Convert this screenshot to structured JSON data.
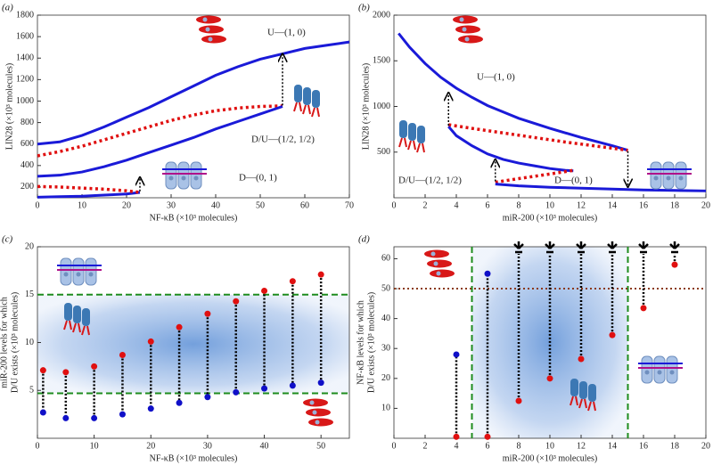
{
  "chart_data": [
    {
      "type": "line",
      "panel": "(a)",
      "x_label": "NF-κB (×10³ molecules)",
      "y_label": [
        "LIN28 (×10³ molecules)"
      ],
      "xlim": [
        0,
        70
      ],
      "xticks": [
        0,
        10,
        20,
        30,
        40,
        50,
        60,
        70
      ],
      "ylim": [
        100,
        1800
      ],
      "yticks": [
        200,
        400,
        600,
        800,
        1000,
        1200,
        1400,
        1600,
        1800
      ],
      "series": [
        {
          "color": "#1a1ad8",
          "style": "solid",
          "x": [
            0,
            5,
            10,
            15,
            20,
            25,
            30,
            35,
            40,
            45,
            50,
            55,
            60,
            65,
            70
          ],
          "values": [
            600,
            620,
            680,
            760,
            850,
            940,
            1040,
            1140,
            1240,
            1320,
            1390,
            1440,
            1490,
            1520,
            1550
          ]
        },
        {
          "color": "#e01010",
          "style": "dotted",
          "x": [
            0,
            5,
            10,
            15,
            20,
            25,
            30,
            35,
            40,
            45,
            50,
            55
          ],
          "values": [
            490,
            530,
            580,
            640,
            700,
            760,
            820,
            870,
            910,
            935,
            950,
            955
          ]
        },
        {
          "color": "#1a1ad8",
          "style": "solid",
          "x": [
            0,
            5,
            10,
            15,
            20,
            25,
            30,
            35,
            40,
            45,
            50,
            55
          ],
          "values": [
            300,
            310,
            340,
            390,
            450,
            520,
            590,
            660,
            740,
            810,
            880,
            950
          ]
        },
        {
          "color": "#1a1ad8",
          "style": "solid",
          "x": [
            0,
            5,
            10,
            15,
            20,
            23
          ],
          "values": [
            105,
            110,
            115,
            125,
            135,
            150
          ]
        },
        {
          "color": "#e01010",
          "style": "dotted",
          "x": [
            0,
            5,
            10,
            15,
            20,
            23
          ],
          "values": [
            205,
            200,
            190,
            180,
            165,
            150
          ]
        }
      ],
      "arrows": [
        {
          "x": 23,
          "from": 160,
          "to": 290
        },
        {
          "x": 55,
          "from": 960,
          "to": 1440
        }
      ],
      "annotations": [
        "U—(1, 0)",
        "D/U—(1/2, 1/2)",
        "D—(0, 1)"
      ]
    },
    {
      "type": "line",
      "panel": "(b)",
      "x_label": "miR-200 (×10³ molecules)",
      "y_label": [
        "LIN28 (×10³ molecules)"
      ],
      "xlim": [
        0,
        20
      ],
      "xticks": [
        0,
        2,
        4,
        6,
        8,
        10,
        12,
        14,
        16,
        18,
        20
      ],
      "ylim": [
        0,
        2000
      ],
      "yticks": [
        500,
        1000,
        1500,
        2000
      ],
      "series": [
        {
          "color": "#1a1ad8",
          "style": "solid",
          "x": [
            0.3,
            1,
            2,
            3,
            4,
            5,
            6,
            8,
            10,
            12,
            14,
            15
          ],
          "values": [
            1800,
            1650,
            1470,
            1320,
            1200,
            1100,
            1010,
            870,
            760,
            660,
            570,
            520
          ]
        },
        {
          "color": "#e01010",
          "style": "dotted",
          "x": [
            3.5,
            5,
            7,
            9,
            11,
            13,
            15
          ],
          "values": [
            800,
            760,
            710,
            660,
            610,
            565,
            520
          ]
        },
        {
          "color": "#1a1ad8",
          "style": "solid",
          "x": [
            3.5,
            4,
            5,
            6,
            7,
            8,
            9,
            10,
            11,
            11.5
          ],
          "values": [
            780,
            680,
            570,
            480,
            420,
            380,
            350,
            320,
            300,
            295
          ]
        },
        {
          "color": "#e01010",
          "style": "dotted",
          "x": [
            6.5,
            8,
            10,
            11.5
          ],
          "values": [
            170,
            210,
            260,
            300
          ]
        },
        {
          "color": "#1a1ad8",
          "style": "solid",
          "x": [
            6.5,
            8,
            10,
            12,
            14,
            16,
            18,
            20
          ],
          "values": [
            150,
            130,
            115,
            105,
            95,
            85,
            80,
            75
          ]
        }
      ],
      "arrows": [
        {
          "x": 3.5,
          "from": 790,
          "to": 1150
        },
        {
          "x": 6.5,
          "from": 180,
          "to": 420
        },
        {
          "x": 15,
          "from": 510,
          "to": 120
        }
      ],
      "annotations": [
        "U—(1, 0)",
        "D/U—(1/2, 1/2)",
        "D—(0, 1)"
      ]
    },
    {
      "type": "scatter",
      "panel": "(c)",
      "x_label": "NF-κB (×10³ molecules)",
      "y_label": [
        "miR-200 levels for which",
        "D/U exists (×10³ molecules)"
      ],
      "xlim": [
        0,
        55
      ],
      "xticks": [
        0,
        10,
        20,
        30,
        40,
        50
      ],
      "ylim": [
        0,
        20
      ],
      "yticks": [
        5,
        10,
        15,
        20
      ],
      "series": [
        {
          "color": "#e01010",
          "x": [
            1,
            5,
            10,
            15,
            20,
            25,
            30,
            35,
            40,
            45,
            50
          ],
          "values": [
            7.1,
            6.9,
            7.5,
            8.7,
            10.1,
            11.6,
            13,
            14.3,
            15.4,
            16.4,
            17.1
          ]
        },
        {
          "color": "#1010c8",
          "x": [
            1,
            5,
            10,
            15,
            20,
            25,
            30,
            35,
            40,
            45,
            50
          ],
          "values": [
            2.7,
            2.1,
            2.1,
            2.5,
            3.1,
            3.7,
            4.3,
            4.8,
            5.2,
            5.5,
            5.8
          ]
        }
      ],
      "ref_lines": [
        {
          "axis": "y",
          "value": 15,
          "color": "#1e8c1e",
          "style": "dashed"
        },
        {
          "axis": "y",
          "value": 4.7,
          "color": "#1e8c1e",
          "style": "dashed"
        }
      ],
      "shade_axis": "y",
      "connectors": true
    },
    {
      "type": "scatter",
      "panel": "(d)",
      "x_label": "miR-200 (×10³ molecules)",
      "y_label": [
        "NF-κB levels for which",
        "D/U exists (×10³ molecules)"
      ],
      "xlim": [
        0,
        20
      ],
      "xticks": [
        0,
        2,
        4,
        6,
        8,
        10,
        12,
        14,
        16,
        18,
        20
      ],
      "ylim": [
        0,
        64
      ],
      "yticks": [
        10,
        20,
        30,
        40,
        50,
        60
      ],
      "series": [
        {
          "color": "#e01010",
          "x": [
            4,
            6,
            8,
            10,
            12,
            14,
            16,
            18
          ],
          "values": [
            0.5,
            0.5,
            12.5,
            20,
            26.5,
            34.5,
            43.5,
            58
          ]
        },
        {
          "color": "#1010c8",
          "x": [
            4,
            6
          ],
          "values": [
            28,
            55
          ]
        }
      ],
      "ref_lines": [
        {
          "axis": "x",
          "value": 5,
          "color": "#1e8c1e",
          "style": "dashed"
        },
        {
          "axis": "x",
          "value": 15,
          "color": "#1e8c1e",
          "style": "dashed"
        },
        {
          "axis": "y",
          "value": 50,
          "color": "#8b3a1a",
          "style": "dotted"
        }
      ],
      "shade_axis": "x",
      "connectors": true
    }
  ]
}
